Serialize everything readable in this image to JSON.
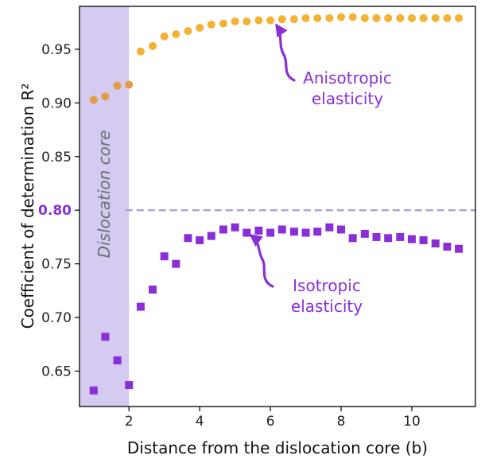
{
  "chart_data": {
    "type": "scatter",
    "xlabel": "Distance from the dislocation core (b)",
    "ylabel": "Coefficient of determination R²",
    "xlim": [
      0.6,
      11.8
    ],
    "ylim": [
      0.617,
      0.99
    ],
    "grid": false,
    "x_ticks": [
      {
        "value": 2,
        "label": "2"
      },
      {
        "value": 4,
        "label": "4"
      },
      {
        "value": 6,
        "label": "6"
      },
      {
        "value": 8,
        "label": "8"
      },
      {
        "value": 10,
        "label": "10"
      }
    ],
    "y_ticks": [
      {
        "value": 0.65,
        "label": "0.65"
      },
      {
        "value": 0.7,
        "label": "0.70"
      },
      {
        "value": 0.75,
        "label": "0.75"
      },
      {
        "value": 0.8,
        "label": "0.80",
        "highlight": true
      },
      {
        "value": 0.85,
        "label": "0.85"
      },
      {
        "value": 0.9,
        "label": "0.90"
      },
      {
        "value": 0.95,
        "label": "0.95"
      }
    ],
    "shaded_region": {
      "x0": 0.6,
      "x1": 2.0,
      "color": "#b9a6e6",
      "label": "Dislocation core"
    },
    "threshold": {
      "value": 0.8,
      "x_start": 1.9,
      "color": "#a9a6d3"
    },
    "series": [
      {
        "name": "Anisotropic elasticity",
        "marker": "circle",
        "color": "#f5b134",
        "core_color": "#e59a45",
        "x": [
          1.0,
          1.33,
          1.67,
          2.0,
          2.33,
          2.67,
          3.0,
          3.33,
          3.67,
          4.0,
          4.33,
          4.67,
          5.0,
          5.33,
          5.67,
          6.0,
          6.33,
          6.67,
          7.0,
          7.33,
          7.67,
          8.0,
          8.33,
          8.67,
          9.0,
          9.33,
          9.67,
          10.0,
          10.33,
          10.67,
          11.0,
          11.33
        ],
        "y": [
          0.903,
          0.906,
          0.916,
          0.917,
          0.948,
          0.953,
          0.962,
          0.964,
          0.967,
          0.97,
          0.973,
          0.974,
          0.976,
          0.976,
          0.977,
          0.977,
          0.978,
          0.978,
          0.979,
          0.979,
          0.979,
          0.98,
          0.98,
          0.979,
          0.979,
          0.979,
          0.979,
          0.979,
          0.979,
          0.979,
          0.979,
          0.979
        ]
      },
      {
        "name": "Isotropic elasticity",
        "marker": "square",
        "color": "#8a2fd8",
        "x": [
          1.0,
          1.33,
          1.67,
          2.0,
          2.33,
          2.67,
          3.0,
          3.33,
          3.67,
          4.0,
          4.33,
          4.67,
          5.0,
          5.33,
          5.67,
          6.0,
          6.33,
          6.67,
          7.0,
          7.33,
          7.67,
          8.0,
          8.33,
          8.67,
          9.0,
          9.33,
          9.67,
          10.0,
          10.33,
          10.67,
          11.0,
          11.33
        ],
        "y": [
          0.632,
          0.682,
          0.66,
          0.637,
          0.71,
          0.726,
          0.757,
          0.75,
          0.774,
          0.772,
          0.776,
          0.782,
          0.784,
          0.779,
          0.781,
          0.779,
          0.782,
          0.78,
          0.779,
          0.78,
          0.784,
          0.782,
          0.774,
          0.778,
          0.775,
          0.774,
          0.775,
          0.773,
          0.772,
          0.769,
          0.766,
          0.764
        ]
      }
    ],
    "annotations": [
      {
        "lines": [
          "Anisotropic",
          "elasticity"
        ],
        "color": "#8a2fd8",
        "arrow_to": [
          6.0,
          0.977
        ]
      },
      {
        "lines": [
          "Isotropic",
          "elasticity"
        ],
        "color": "#8a2fd8",
        "arrow_to": [
          5.3,
          0.779
        ]
      }
    ]
  }
}
